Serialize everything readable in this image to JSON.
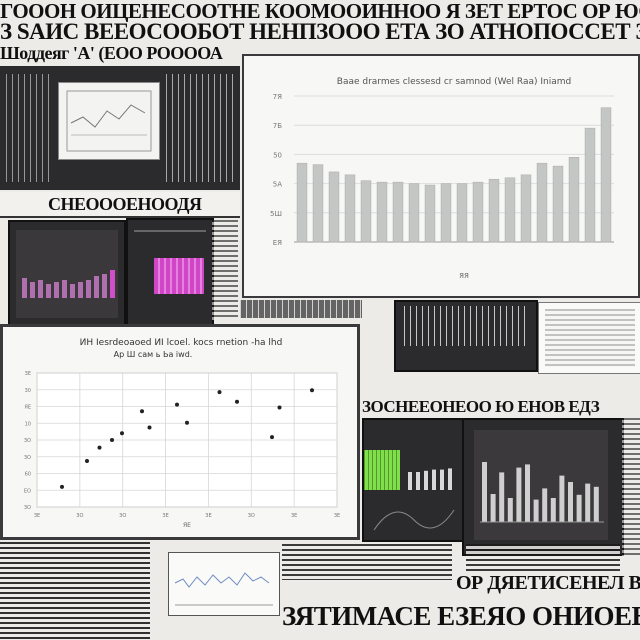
{
  "colors": {
    "paper": "#ecebe8",
    "ink": "#101010",
    "panel_dark": "#2b2a2c",
    "bar_grey": "#c4c6c5",
    "pink_bar": "#d04fc8",
    "magenta_block": "#d046c6",
    "lime": "#7fe04a"
  },
  "icons": [
    "chart-thumbnail-icon",
    "bar-chart-thumbnail-icon"
  ],
  "headlines": {
    "top_line_1": "ГОООН ОИЦЕНЕСООТНЕ КООМООИННОО Я ЗЕТ ЕРТОС ОР ЮОО НЕ ВА",
    "top_line_2": "З SАИС ВЕЕОСООБОТ НЕНПЗООО ЕТА ЗО АТНОПОССЕТ ЗАВОНТО",
    "top_line_3": "Шоддеяг 'А' (ЕОО РООООА",
    "mid_banner": "СНЕОООЕНООДЯ",
    "right_banner": "ЗОСНЕЕОНЕОО Ю ЕНОВ ЕДЗ",
    "bottom_big_1": "ОР ДЯЕТИСЕНЕЛ ВИОЯ",
    "bottom_big_2": "ЗЯТИМАСЕ ЕЗЕЯО ОНИОЕЕИИ"
  },
  "chart_data": [
    {
      "type": "bar",
      "title": "Baae drarmes clessesd cr samnod (Wel Raa) Iniamd",
      "categories": [
        "",
        "",
        "",
        "",
        "",
        "",
        "",
        "",
        "",
        "",
        "",
        "",
        "",
        "",
        "",
        "",
        "",
        "",
        "",
        ""
      ],
      "values": [
        54,
        53,
        48,
        46,
        42,
        41,
        41,
        40,
        39,
        40,
        40,
        41,
        43,
        44,
        46,
        54,
        52,
        58,
        78,
        92
      ],
      "ylim": [
        0,
        100
      ],
      "yticks": [
        "7Я",
        "7Б",
        "50",
        "5А",
        "5Ш",
        "ЕЯ"
      ],
      "xlabel": "ЯЯ",
      "ylabel": "",
      "grid": true,
      "legend": "none"
    },
    {
      "type": "scatter",
      "title": "ИН Iesrdeoaoed ИI lcoel. kocs rnetion -ha lhd",
      "subtitle": "Ap Ш сам ь Ьа iwd.",
      "points": [
        [
          1,
          21
        ],
        [
          2,
          48
        ],
        [
          2.5,
          62
        ],
        [
          3,
          70
        ],
        [
          4.5,
          83
        ],
        [
          3.4,
          77
        ],
        [
          4.2,
          100
        ],
        [
          5.6,
          107
        ],
        [
          6,
          88
        ],
        [
          7.3,
          120
        ],
        [
          8,
          110
        ],
        [
          9.4,
          73
        ],
        [
          9.7,
          104
        ],
        [
          11,
          122
        ]
      ],
      "xlim": [
        0,
        12
      ],
      "ylim": [
        0,
        140
      ],
      "yticks": [
        "ЗЕ",
        "30",
        "ЯЕ",
        "10",
        "ЗО",
        "ЗО",
        "60",
        "ЕО",
        "ЗО"
      ],
      "xticks": [
        "ЗЕ",
        "ЗО",
        "ЗО",
        "ЗЕ",
        "ЗЕ",
        "ЗО",
        "ЗЕ",
        "ЗЕ"
      ],
      "xlabel": "ЯЕ",
      "grid": true,
      "legend": "none"
    },
    {
      "type": "bar",
      "title": "",
      "categories": [
        "",
        "",
        "",
        "",
        "",
        "",
        "",
        "",
        "",
        "",
        "",
        "",
        "",
        ""
      ],
      "values": [
        75,
        35,
        62,
        30,
        68,
        72,
        28,
        42,
        30,
        58,
        50,
        34,
        48,
        44
      ],
      "ylim": [
        0,
        100
      ],
      "legend": "none"
    },
    {
      "type": "bar",
      "title": "",
      "categories": [
        "",
        "",
        "",
        "",
        "",
        ""
      ],
      "values": [
        30,
        30,
        32,
        34,
        34,
        36
      ],
      "ylim": [
        0,
        100
      ],
      "legend": "none"
    }
  ]
}
